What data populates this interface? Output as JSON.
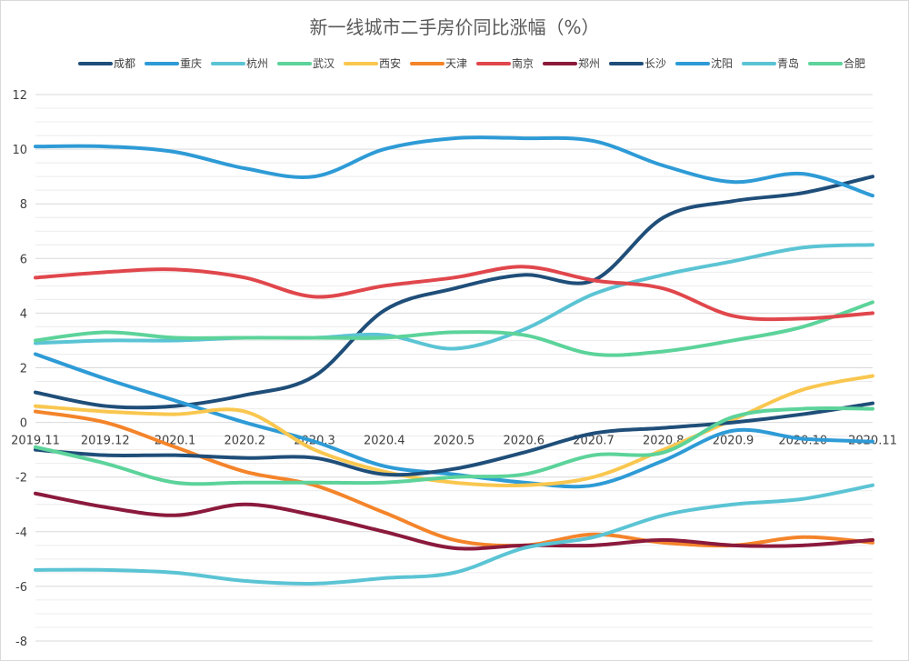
{
  "chart_data": {
    "type": "line",
    "title": "新一线城市二手房价同比涨幅（%）",
    "categories": [
      "2019.11",
      "2019.12",
      "2020.1",
      "2020.2",
      "2020.3",
      "2020.4",
      "2020.5",
      "2020.6",
      "2020.7",
      "2020.8",
      "2020.9",
      "2020.10",
      "2020.11"
    ],
    "y_ticks": [
      "12",
      "10",
      "8",
      "6",
      "4",
      "2",
      "0",
      "-2",
      "-4",
      "-6",
      "-8"
    ],
    "ylim": [
      -8,
      12
    ],
    "grid": true,
    "legend_position": "top",
    "series": [
      {
        "name": "成都",
        "color": "#1F4E79",
        "values": [
          1.1,
          0.6,
          0.6,
          1.0,
          1.7,
          4.1,
          4.9,
          5.4,
          5.2,
          7.5,
          8.1,
          8.4,
          9.0
        ]
      },
      {
        "name": "重庆",
        "color": "#2E9BD6",
        "values": [
          2.5,
          1.6,
          0.8,
          0.0,
          -0.7,
          -1.6,
          -1.9,
          -2.2,
          -2.3,
          -1.4,
          -0.3,
          -0.6,
          -0.7
        ]
      },
      {
        "name": "杭州",
        "color": "#5BC4D4",
        "values": [
          2.9,
          3.0,
          3.0,
          3.1,
          3.1,
          3.2,
          2.7,
          3.4,
          4.7,
          5.4,
          5.9,
          6.4,
          6.5
        ]
      },
      {
        "name": "武汉",
        "color": "#5CD39A",
        "values": [
          3.0,
          3.3,
          3.1,
          3.1,
          3.1,
          3.1,
          3.3,
          3.2,
          2.5,
          2.6,
          3.0,
          3.5,
          4.4
        ]
      },
      {
        "name": "西安",
        "color": "#F9C74F",
        "values": [
          0.6,
          0.4,
          0.3,
          0.4,
          -1.0,
          -1.8,
          -2.2,
          -2.3,
          -2.0,
          -1.0,
          0.1,
          1.2,
          1.7
        ]
      },
      {
        "name": "天津",
        "color": "#F4842A",
        "values": [
          0.4,
          0.0,
          -0.9,
          -1.8,
          -2.3,
          -3.3,
          -4.3,
          -4.5,
          -4.1,
          -4.4,
          -4.5,
          -4.2,
          -4.4
        ]
      },
      {
        "name": "南京",
        "color": "#E0474C",
        "values": [
          5.3,
          5.5,
          5.6,
          5.3,
          4.6,
          5.0,
          5.3,
          5.7,
          5.2,
          4.9,
          3.9,
          3.8,
          4.0
        ]
      },
      {
        "name": "郑州",
        "color": "#8B1A3C",
        "values": [
          -2.6,
          -3.1,
          -3.4,
          -3.0,
          -3.4,
          -4.0,
          -4.6,
          -4.5,
          -4.5,
          -4.3,
          -4.5,
          -4.5,
          -4.3
        ]
      },
      {
        "name": "长沙",
        "color": "#1F4E79",
        "values": [
          -1.0,
          -1.2,
          -1.2,
          -1.3,
          -1.3,
          -1.9,
          -1.7,
          -1.1,
          -0.4,
          -0.2,
          0.0,
          0.3,
          0.7
        ]
      },
      {
        "name": "沈阳",
        "color": "#2E9BD6",
        "values": [
          10.1,
          10.1,
          9.9,
          9.3,
          9.0,
          10.0,
          10.4,
          10.4,
          10.3,
          9.4,
          8.8,
          9.1,
          8.3
        ]
      },
      {
        "name": "青岛",
        "color": "#5BC4D4",
        "values": [
          -5.4,
          -5.4,
          -5.5,
          -5.8,
          -5.9,
          -5.7,
          -5.5,
          -4.6,
          -4.2,
          -3.4,
          -3.0,
          -2.8,
          -2.3
        ]
      },
      {
        "name": "合肥",
        "color": "#5CD39A",
        "values": [
          -0.9,
          -1.5,
          -2.2,
          -2.2,
          -2.2,
          -2.2,
          -2.0,
          -1.9,
          -1.2,
          -1.1,
          0.2,
          0.5,
          0.5
        ]
      }
    ]
  }
}
